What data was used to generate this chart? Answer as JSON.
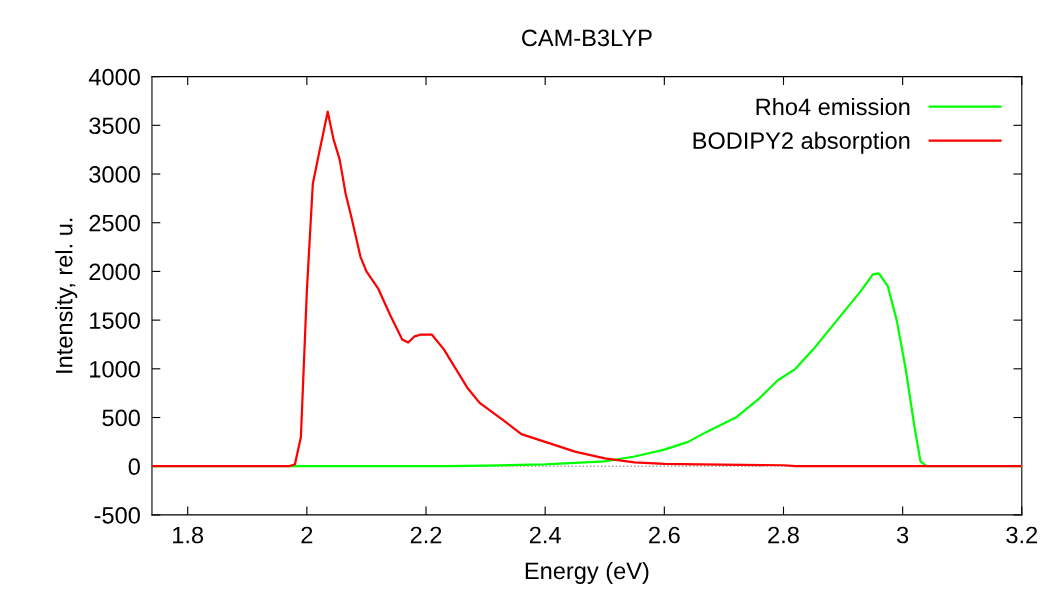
{
  "chart_data": {
    "type": "line",
    "title": "CAM-B3LYP",
    "xlabel": "Energy (eV)",
    "ylabel": "Intensity, rel. u.",
    "xlim": [
      1.74,
      3.2
    ],
    "xticks": [
      1.8,
      2,
      2.2,
      2.4,
      2.6,
      2.8,
      3,
      3.2
    ],
    "ylim": [
      -500,
      4000
    ],
    "yticks": [
      -500,
      0,
      500,
      1000,
      1500,
      2000,
      2500,
      3000,
      3500,
      4000
    ],
    "grid": false,
    "legend": "top right",
    "line_style": "solid",
    "marker": "none",
    "ref_lines": [
      {
        "axis": "y",
        "value": 0,
        "color": "#a0a0a0",
        "line_style": "dotted"
      }
    ],
    "series": [
      {
        "name": "Rho4 emission",
        "color": "#00ff00",
        "x": [
          1.74,
          2.0,
          2.23,
          2.3,
          2.4,
          2.5,
          2.55,
          2.6,
          2.64,
          2.67,
          2.72,
          2.76,
          2.79,
          2.82,
          2.85,
          2.89,
          2.93,
          2.95,
          2.96,
          2.975,
          2.99,
          3.005,
          3.02,
          3.03,
          3.04,
          3.2
        ],
        "values": [
          0,
          0,
          0,
          5,
          20,
          50,
          100,
          170,
          250,
          350,
          500,
          700,
          880,
          1000,
          1200,
          1500,
          1800,
          1970,
          1980,
          1850,
          1500,
          1000,
          400,
          50,
          0,
          0
        ]
      },
      {
        "name": "BODIPY2 absorption",
        "color": "#ff0000",
        "x": [
          1.74,
          1.97,
          1.98,
          1.99,
          2.0,
          2.01,
          2.02,
          2.035,
          2.045,
          2.055,
          2.065,
          2.075,
          2.09,
          2.1,
          2.12,
          2.14,
          2.16,
          2.17,
          2.18,
          2.19,
          2.21,
          2.23,
          2.25,
          2.27,
          2.29,
          2.33,
          2.36,
          2.4,
          2.45,
          2.5,
          2.55,
          2.6,
          2.66,
          2.8,
          2.82,
          3.2
        ],
        "values": [
          0,
          0,
          20,
          300,
          1800,
          2900,
          3200,
          3640,
          3350,
          3150,
          2800,
          2550,
          2150,
          2000,
          1820,
          1550,
          1300,
          1270,
          1330,
          1350,
          1350,
          1200,
          1000,
          800,
          650,
          470,
          330,
          250,
          150,
          80,
          40,
          25,
          20,
          10,
          0,
          0
        ]
      }
    ]
  }
}
